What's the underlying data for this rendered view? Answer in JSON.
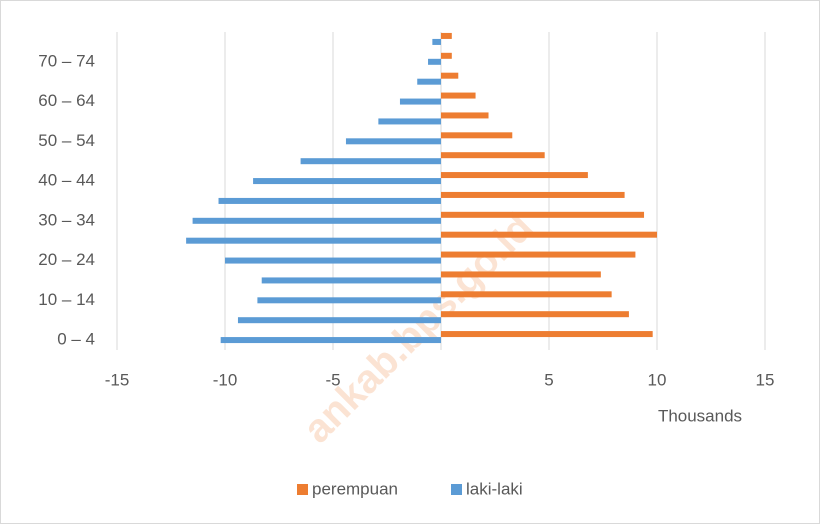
{
  "chart_data": {
    "type": "bar",
    "orientation": "horizontal",
    "categories": [
      "0 – 4",
      null,
      "10 – 14",
      null,
      "20 – 24",
      null,
      "30 – 34",
      null,
      "40 – 44",
      null,
      "50 – 54",
      null,
      "60 – 64",
      null,
      "70 – 74",
      null
    ],
    "series": [
      {
        "name": "perempuan",
        "color": "#ed7d31",
        "values": [
          9.8,
          8.7,
          7.9,
          7.4,
          9.0,
          10.0,
          9.4,
          8.5,
          6.8,
          4.8,
          3.3,
          2.2,
          1.6,
          0.8,
          0.5,
          0.5
        ]
      },
      {
        "name": "laki-laki",
        "color": "#5b9bd5",
        "values": [
          -10.2,
          -9.4,
          -8.5,
          -8.3,
          -10.0,
          -11.8,
          -11.5,
          -10.3,
          -8.7,
          -6.5,
          -4.4,
          -2.9,
          -1.9,
          -1.1,
          -0.6,
          -0.4
        ]
      }
    ],
    "xlim": [
      -15,
      15
    ],
    "xticks": [
      -15,
      -10,
      -5,
      5,
      10,
      15
    ],
    "grid": true,
    "x_axis_label": "Thousands",
    "legend": "bottom",
    "watermark": "ankab.bps.go.id"
  }
}
